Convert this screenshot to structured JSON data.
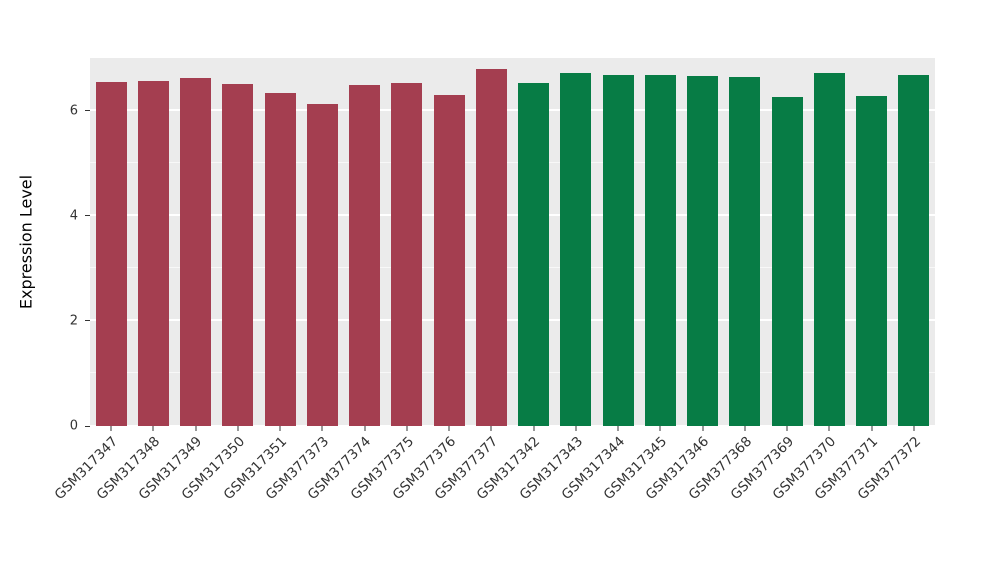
{
  "chart_data": {
    "type": "bar",
    "title": "",
    "xlabel": "",
    "ylabel": "Expression Level",
    "ylim": [
      0,
      7
    ],
    "yticks": [
      0,
      2,
      4,
      6
    ],
    "minor_gridlines": [
      1,
      3,
      5,
      7
    ],
    "grid": true,
    "legend": "none",
    "panel_background": "#EBEBEB",
    "gridline_color": "#FFFFFF",
    "group_colors": {
      "left-group": "#A43E50",
      "right-group": "#077C45"
    },
    "categories": [
      "GSM317347",
      "GSM317348",
      "GSM317349",
      "GSM317350",
      "GSM317351",
      "GSM377373",
      "GSM377374",
      "GSM377375",
      "GSM377376",
      "GSM377377",
      "GSM317342",
      "GSM317343",
      "GSM317344",
      "GSM317345",
      "GSM317346",
      "GSM377368",
      "GSM377369",
      "GSM377370",
      "GSM377371",
      "GSM377372"
    ],
    "values": [
      6.55,
      6.57,
      6.62,
      6.5,
      6.33,
      6.12,
      6.48,
      6.53,
      6.3,
      6.8,
      6.52,
      6.72,
      6.68,
      6.68,
      6.66,
      6.63,
      6.25,
      6.72,
      6.28,
      6.68
    ],
    "colors": [
      "#A43E50",
      "#A43E50",
      "#A43E50",
      "#A43E50",
      "#A43E50",
      "#A43E50",
      "#A43E50",
      "#A43E50",
      "#A43E50",
      "#A43E50",
      "#077C45",
      "#077C45",
      "#077C45",
      "#077C45",
      "#077C45",
      "#077C45",
      "#077C45",
      "#077C45",
      "#077C45",
      "#077C45"
    ]
  }
}
